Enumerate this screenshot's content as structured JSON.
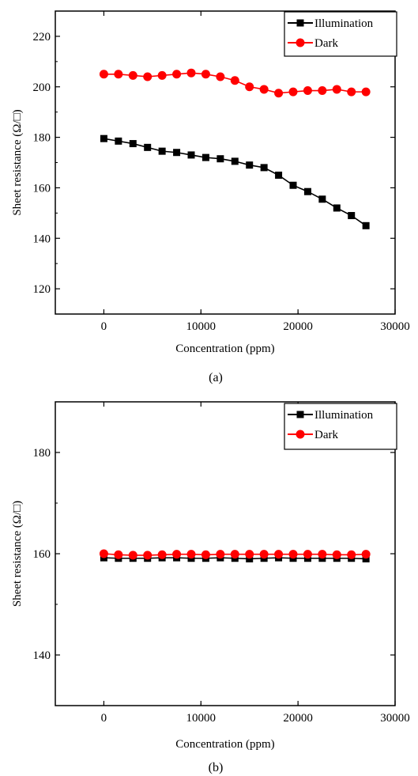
{
  "chart_data": [
    {
      "type": "line",
      "panel_label": "(a)",
      "xlabel": "Concentration (ppm)",
      "ylabel": "Sheet resistance (Ω/□)",
      "xlim": [
        -5000,
        30000
      ],
      "ylim": [
        110,
        230
      ],
      "xticks": [
        0,
        10000,
        20000,
        30000
      ],
      "yticks": [
        120,
        140,
        160,
        180,
        200,
        220
      ],
      "grid": false,
      "legend_position": "top-right",
      "x": [
        0,
        1500,
        3000,
        4500,
        6000,
        7500,
        9000,
        10500,
        12000,
        13500,
        15000,
        16500,
        18000,
        19500,
        21000,
        22500,
        24000,
        25500,
        27000
      ],
      "series": [
        {
          "name": "Illumination",
          "color": "#000000",
          "marker": "square",
          "values": [
            179.5,
            178.5,
            177.5,
            176,
            174.5,
            174,
            173,
            172,
            171.5,
            170.5,
            169,
            168,
            165,
            161,
            158.5,
            155.5,
            152,
            149,
            145
          ]
        },
        {
          "name": "Dark",
          "color": "#ff0000",
          "marker": "circle",
          "values": [
            205,
            205,
            204.5,
            204,
            204.5,
            205,
            205.5,
            205,
            204,
            202.5,
            200,
            199,
            197.5,
            198,
            198.5,
            198.5,
            199,
            198,
            198
          ]
        }
      ]
    },
    {
      "type": "line",
      "panel_label": "(b)",
      "xlabel": "Concentration (ppm)",
      "ylabel": "Sheet resistance (Ω/□)",
      "xlim": [
        -5000,
        30000
      ],
      "ylim": [
        130,
        190
      ],
      "xticks": [
        0,
        10000,
        20000,
        30000
      ],
      "yticks": [
        140,
        160,
        180
      ],
      "grid": false,
      "legend_position": "top-right",
      "x": [
        0,
        1500,
        3000,
        4500,
        6000,
        7500,
        9000,
        10500,
        12000,
        13500,
        15000,
        16500,
        18000,
        19500,
        21000,
        22500,
        24000,
        25500,
        27000
      ],
      "series": [
        {
          "name": "Illumination",
          "color": "#000000",
          "marker": "square",
          "values": [
            159.2,
            159.1,
            159.1,
            159.1,
            159.2,
            159.2,
            159.1,
            159.1,
            159.2,
            159.1,
            159.0,
            159.1,
            159.2,
            159.1,
            159.1,
            159.1,
            159.1,
            159.1,
            159.0
          ]
        },
        {
          "name": "Dark",
          "color": "#ff0000",
          "marker": "circle",
          "values": [
            160.0,
            159.8,
            159.7,
            159.7,
            159.8,
            159.9,
            159.9,
            159.8,
            159.9,
            159.9,
            159.9,
            159.9,
            159.9,
            159.9,
            159.9,
            159.9,
            159.8,
            159.8,
            159.9
          ]
        }
      ]
    }
  ]
}
